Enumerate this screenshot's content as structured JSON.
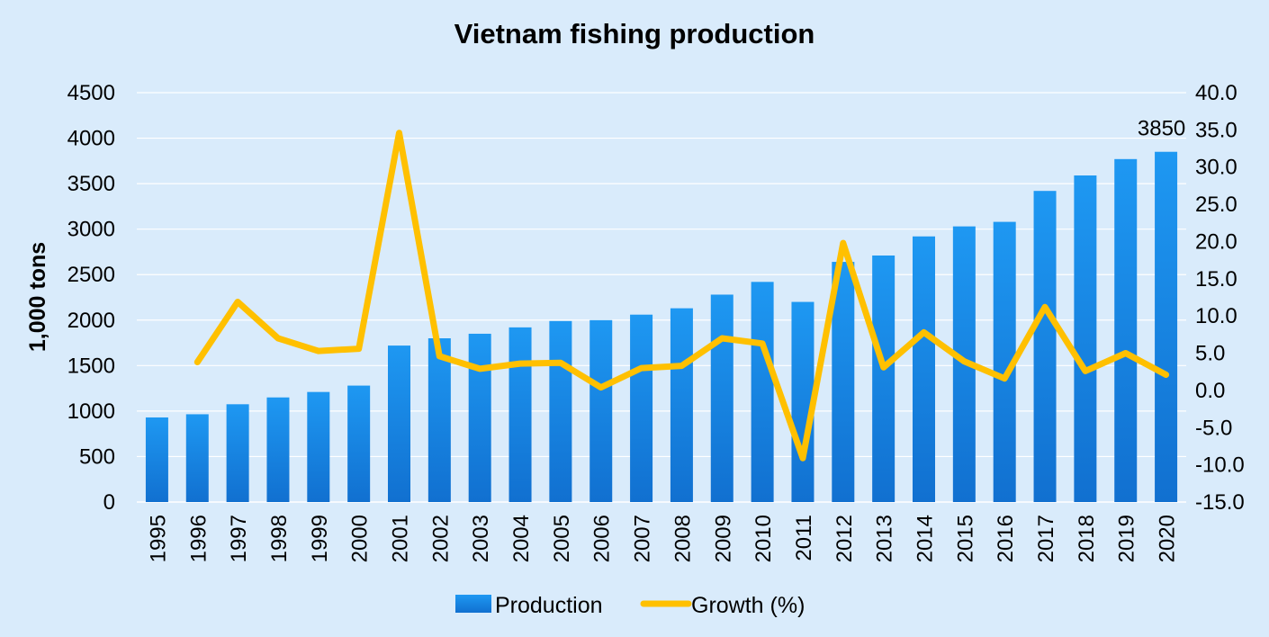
{
  "chart_data": {
    "type": "bar",
    "title": "Vietnam fishing production",
    "ylabel": "1,000 tons",
    "xlabel": "",
    "categories": [
      "1995",
      "1996",
      "1997",
      "1998",
      "1999",
      "2000",
      "2001",
      "2002",
      "2003",
      "2004",
      "2005",
      "2006",
      "2007",
      "2008",
      "2009",
      "2010",
      "2011",
      "2012",
      "2013",
      "2014",
      "2015",
      "2016",
      "2017",
      "2018",
      "2019",
      "2020"
    ],
    "series": [
      {
        "name": "Production",
        "type": "bar",
        "axis": "left",
        "color": "#1e90ee",
        "values": [
          930,
          965,
          1075,
          1150,
          1210,
          1280,
          1720,
          1800,
          1850,
          1920,
          1990,
          2000,
          2060,
          2130,
          2280,
          2420,
          2200,
          2640,
          2710,
          2920,
          3030,
          3080,
          3420,
          3590,
          3770,
          3850
        ]
      },
      {
        "name": "Growth (%)",
        "type": "line",
        "axis": "right",
        "color": "#ffc000",
        "values": [
          null,
          3.8,
          11.9,
          7.0,
          5.3,
          5.6,
          34.6,
          4.6,
          2.9,
          3.6,
          3.7,
          0.4,
          3.0,
          3.3,
          7.0,
          6.3,
          -9.1,
          19.8,
          3.1,
          7.8,
          3.9,
          1.6,
          11.2,
          2.6,
          5.0,
          2.1
        ]
      }
    ],
    "ylim": [
      0,
      4500
    ],
    "yticks": [
      "0",
      "500",
      "1000",
      "1500",
      "2000",
      "2500",
      "3000",
      "3500",
      "4000",
      "4500"
    ],
    "y2lim": [
      -15,
      40
    ],
    "y2ticks": [
      "-15.0",
      "-10.0",
      "-5.0",
      "0.0",
      "5.0",
      "10.0",
      "15.0",
      "20.0",
      "25.0",
      "30.0",
      "35.0",
      "40.0"
    ],
    "annotations": [
      {
        "category": "2020",
        "text": "3850"
      }
    ],
    "grid": true,
    "legend": "bottom"
  }
}
